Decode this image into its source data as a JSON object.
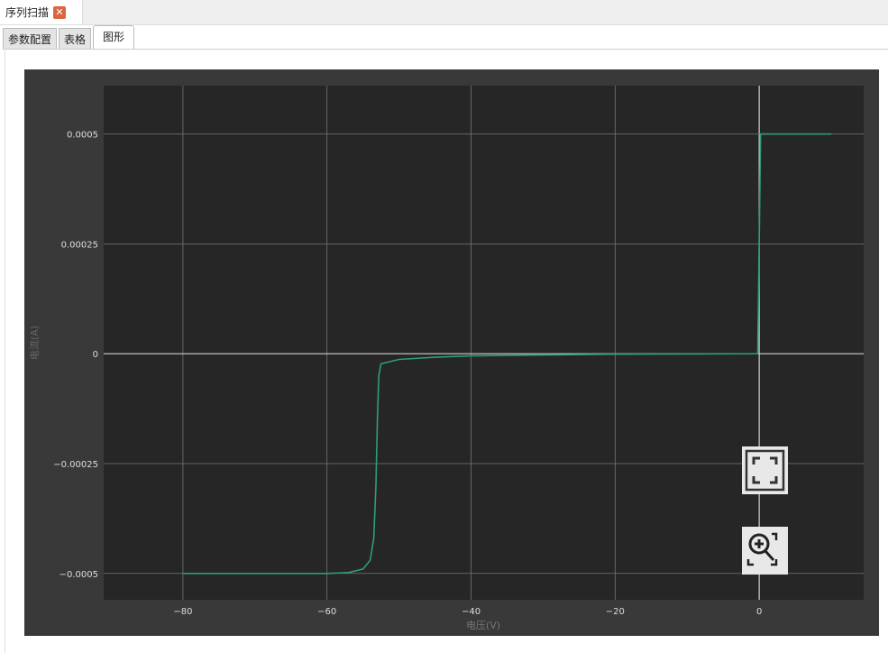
{
  "window": {
    "title": "序列扫描",
    "close_icon": "close-icon"
  },
  "tabs": [
    {
      "label": "参数配置"
    },
    {
      "label": "表格"
    },
    {
      "label": "图形",
      "active": true
    }
  ],
  "tools": {
    "fit_icon": "fit-view-icon",
    "zoom_icon": "zoom-in-icon"
  },
  "colors": {
    "background": "#393939",
    "plot": "#262626",
    "series": "#2f9d7a",
    "grid": "#8a8a8a"
  },
  "chart_data": {
    "type": "line",
    "title": "",
    "xlabel": "电压(V)",
    "ylabel": "电流(A)",
    "xlim": [
      -91,
      14.5
    ],
    "ylim": [
      -0.00056,
      0.00061
    ],
    "grid": true,
    "xticks": [
      -80,
      -60,
      -40,
      -20,
      0
    ],
    "xtick_labels": [
      "−80",
      "−60",
      "−40",
      "−20",
      "0"
    ],
    "yticks": [
      0.0005,
      0.00025,
      0,
      -0.00025,
      -0.0005
    ],
    "ytick_labels": [
      "0.0005",
      "0.00025",
      "0",
      "−0.00025",
      "−0.0005"
    ],
    "series": [
      {
        "x": [
          -80,
          -60,
          -57,
          -55,
          -54,
          -53.5,
          -53.2,
          -53,
          -52.8,
          -52.5,
          -50,
          -45,
          -40,
          -30,
          -20,
          -10,
          -0.2,
          0,
          0.2,
          10
        ],
        "y": [
          -0.0005,
          -0.0005,
          -0.000498,
          -0.00049,
          -0.00047,
          -0.00042,
          -0.0003,
          -0.00015,
          -5e-05,
          -2.3e-05,
          -1.3e-05,
          -8e-06,
          -5e-06,
          -3e-06,
          -1e-06,
          -5e-07,
          0,
          0.00025,
          0.0005,
          0.0005
        ]
      }
    ]
  }
}
